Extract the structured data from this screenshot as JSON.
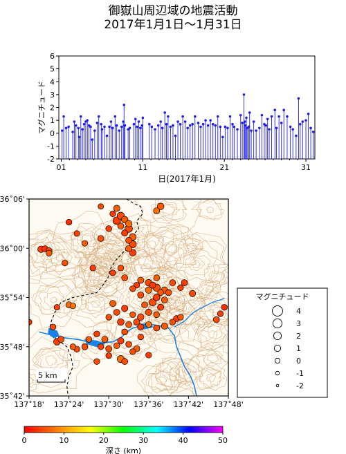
{
  "title": {
    "line1": "御嶽山周辺域の地震活動",
    "line2": "2017年1月1日～1月31日"
  },
  "chart_data": [
    {
      "type": "stem",
      "ylabel": "マグニチュード",
      "xlabel": "日(2017年1月)",
      "x_ticks": [
        "01",
        "11",
        "21",
        "31"
      ],
      "x_tick_days": [
        1,
        11,
        21,
        31
      ],
      "y_ticks": [
        "6",
        "5",
        "4",
        "3",
        "2",
        "1",
        "0",
        "-1",
        "-2"
      ],
      "y_tick_values": [
        6,
        5,
        4,
        3,
        2,
        1,
        0,
        -1,
        -2
      ],
      "ylim": [
        -2,
        6
      ],
      "xlim_days": [
        0.7,
        32.1
      ],
      "color": "#1f1fe6",
      "points": [
        [
          1.1,
          0.2
        ],
        [
          1.3,
          1.3
        ],
        [
          1.6,
          0.4
        ],
        [
          1.9,
          0.5
        ],
        [
          2.4,
          0.1
        ],
        [
          2.6,
          0.9
        ],
        [
          2.8,
          0.6
        ],
        [
          3.1,
          0.4
        ],
        [
          3.2,
          -0.3
        ],
        [
          3.4,
          1.3
        ],
        [
          3.6,
          0.3
        ],
        [
          3.8,
          0.7
        ],
        [
          4.0,
          0.9
        ],
        [
          4.2,
          1.0
        ],
        [
          4.4,
          0.6
        ],
        [
          4.6,
          0.5
        ],
        [
          4.8,
          -0.5
        ],
        [
          5.1,
          0.2
        ],
        [
          5.4,
          0.8
        ],
        [
          5.6,
          1.3
        ],
        [
          5.9,
          0.7
        ],
        [
          6.0,
          0.3
        ],
        [
          6.3,
          0.5
        ],
        [
          6.6,
          -0.2
        ],
        [
          6.9,
          0.5
        ],
        [
          7.1,
          0.9
        ],
        [
          7.3,
          0.4
        ],
        [
          7.6,
          1.3
        ],
        [
          7.8,
          0.6
        ],
        [
          8.1,
          0.2
        ],
        [
          8.4,
          0.5
        ],
        [
          8.6,
          0.9
        ],
        [
          8.7,
          2.2
        ],
        [
          8.8,
          0.6
        ],
        [
          9.2,
          0.3
        ],
        [
          9.4,
          0.4
        ],
        [
          9.9,
          0.7
        ],
        [
          10.1,
          1.1
        ],
        [
          10.3,
          0.5
        ],
        [
          10.5,
          0.9
        ],
        [
          10.7,
          0.4
        ],
        [
          10.9,
          0.6
        ],
        [
          11.0,
          1.2
        ],
        [
          11.8,
          0.7
        ],
        [
          12.1,
          0.5
        ],
        [
          12.5,
          0.3
        ],
        [
          12.9,
          0.6
        ],
        [
          13.2,
          0.9
        ],
        [
          13.4,
          0.4
        ],
        [
          13.7,
          1.6
        ],
        [
          13.9,
          0.7
        ],
        [
          14.1,
          1.3
        ],
        [
          14.4,
          0.5
        ],
        [
          14.7,
          0.6
        ],
        [
          15.0,
          -0.2
        ],
        [
          15.3,
          0.9
        ],
        [
          15.6,
          0.7
        ],
        [
          15.9,
          1.3
        ],
        [
          16.2,
          0.9
        ],
        [
          16.5,
          0.4
        ],
        [
          16.8,
          0.6
        ],
        [
          17.1,
          0.7
        ],
        [
          17.4,
          1.3
        ],
        [
          17.8,
          0.8
        ],
        [
          18.1,
          0.5
        ],
        [
          18.4,
          0.7
        ],
        [
          18.7,
          1.0
        ],
        [
          19.0,
          0.6
        ],
        [
          19.3,
          1.0
        ],
        [
          19.6,
          0.7
        ],
        [
          19.9,
          0.6
        ],
        [
          20.2,
          1.3
        ],
        [
          20.5,
          0.5
        ],
        [
          20.8,
          -0.3
        ],
        [
          21.1,
          0.5
        ],
        [
          21.4,
          0.4
        ],
        [
          21.7,
          1.3
        ],
        [
          22.0,
          0.7
        ],
        [
          22.2,
          0.5
        ],
        [
          22.6,
          0.3
        ],
        [
          23.0,
          1.4
        ],
        [
          23.2,
          0.8
        ],
        [
          23.4,
          3.0
        ],
        [
          23.5,
          0.9
        ],
        [
          23.6,
          0.6
        ],
        [
          23.7,
          1.2
        ],
        [
          23.8,
          0.4
        ],
        [
          24.0,
          0.5
        ],
        [
          24.1,
          1.6
        ],
        [
          24.3,
          0.2
        ],
        [
          24.6,
          0.9
        ],
        [
          24.9,
          0.2
        ],
        [
          25.3,
          0.4
        ],
        [
          25.6,
          1.4
        ],
        [
          25.9,
          0.7
        ],
        [
          26.1,
          0.6
        ],
        [
          26.3,
          1.1
        ],
        [
          26.5,
          0.3
        ],
        [
          26.8,
          1.3
        ],
        [
          27.2,
          1.8
        ],
        [
          27.4,
          0.4
        ],
        [
          27.7,
          1.3
        ],
        [
          28.0,
          0.8
        ],
        [
          28.3,
          1.8
        ],
        [
          28.7,
          1.3
        ],
        [
          29.1,
          0.5
        ],
        [
          29.4,
          0.3
        ],
        [
          29.8,
          -0.2
        ],
        [
          30.1,
          2.7
        ],
        [
          30.3,
          0.7
        ],
        [
          30.6,
          0.9
        ],
        [
          31.0,
          1.0
        ],
        [
          31.3,
          1.5
        ],
        [
          31.6,
          0.4
        ],
        [
          31.9,
          0.1
        ]
      ]
    },
    {
      "type": "map_scatter",
      "x_ticks": [
        "137˚18'",
        "137˚24'",
        "137˚30'",
        "137˚36'",
        "137˚42'",
        "137˚48'"
      ],
      "x_tick_values": [
        137.3,
        137.4,
        137.5,
        137.6,
        137.7,
        137.8
      ],
      "y_ticks": [
        "36˚06'",
        "36˚00'",
        "35˚54'",
        "35˚48'",
        "35˚42'"
      ],
      "y_tick_values": [
        36.1,
        36.0,
        35.9,
        35.8,
        35.7
      ],
      "xlim": [
        137.3,
        137.8
      ],
      "ylim": [
        35.7,
        36.1
      ],
      "scale_label": "5 km",
      "lake": {
        "label": "",
        "color": "#1a82e6"
      },
      "events": [
        [
          137.63,
          36.085,
          1.2,
          6
        ],
        [
          137.62,
          36.076,
          0.9,
          7
        ],
        [
          137.48,
          36.085,
          0.3,
          5
        ],
        [
          137.52,
          36.081,
          1.0,
          6
        ],
        [
          137.51,
          36.07,
          0.6,
          4
        ],
        [
          137.53,
          36.066,
          1.6,
          5
        ],
        [
          137.54,
          36.058,
          1.2,
          6
        ],
        [
          137.52,
          36.056,
          2.0,
          4
        ],
        [
          137.55,
          36.05,
          1.1,
          7
        ],
        [
          137.53,
          36.045,
          0.8,
          6
        ],
        [
          137.55,
          36.04,
          1.8,
          5
        ],
        [
          137.54,
          36.031,
          0.9,
          4
        ],
        [
          137.56,
          36.023,
          1.3,
          6
        ],
        [
          137.55,
          36.016,
          0.7,
          5
        ],
        [
          137.56,
          36.008,
          1.5,
          5
        ],
        [
          137.55,
          35.999,
          0.9,
          6
        ],
        [
          137.56,
          35.991,
          1.2,
          4
        ],
        [
          137.4,
          36.053,
          0.6,
          3
        ],
        [
          137.42,
          36.03,
          0.5,
          4
        ],
        [
          137.48,
          36.02,
          0.8,
          5
        ],
        [
          137.5,
          36.04,
          0.7,
          4
        ],
        [
          137.44,
          36.01,
          0.5,
          6
        ],
        [
          137.33,
          35.998,
          1.1,
          4
        ],
        [
          137.34,
          35.999,
          0.9,
          3
        ],
        [
          137.35,
          35.995,
          0.8,
          5
        ],
        [
          137.35,
          35.99,
          0.7,
          6
        ],
        [
          137.39,
          35.97,
          0.6,
          5
        ],
        [
          137.46,
          35.96,
          0.6,
          4
        ],
        [
          137.53,
          35.96,
          0.6,
          5
        ],
        [
          137.51,
          35.95,
          0.6,
          4
        ],
        [
          137.54,
          35.94,
          0.8,
          5
        ],
        [
          137.58,
          35.935,
          0.9,
          6
        ],
        [
          137.6,
          35.93,
          1.3,
          5
        ],
        [
          137.61,
          35.925,
          0.9,
          4
        ],
        [
          137.62,
          35.92,
          1.7,
          5
        ],
        [
          137.63,
          35.91,
          0.7,
          6
        ],
        [
          137.6,
          35.915,
          1.1,
          7
        ],
        [
          137.58,
          35.905,
          0.9,
          5
        ],
        [
          137.62,
          35.9,
          1.2,
          4
        ],
        [
          137.64,
          35.895,
          0.8,
          6
        ],
        [
          137.61,
          35.89,
          1.4,
          5
        ],
        [
          137.59,
          35.885,
          0.7,
          6
        ],
        [
          137.6,
          35.87,
          1.0,
          5
        ],
        [
          137.63,
          35.88,
          0.9,
          4
        ],
        [
          137.62,
          35.865,
          0.7,
          6
        ],
        [
          137.58,
          35.86,
          1.1,
          5
        ],
        [
          137.56,
          35.865,
          0.6,
          6
        ],
        [
          137.54,
          35.878,
          1.0,
          4
        ],
        [
          137.52,
          35.87,
          0.8,
          5
        ],
        [
          137.51,
          35.888,
          0.9,
          6
        ],
        [
          137.5,
          35.86,
          0.6,
          5
        ],
        [
          137.53,
          35.85,
          1.2,
          4
        ],
        [
          137.55,
          35.845,
          0.7,
          6
        ],
        [
          137.57,
          35.85,
          0.9,
          5
        ],
        [
          137.58,
          35.84,
          1.0,
          4
        ],
        [
          137.6,
          35.845,
          0.6,
          7
        ],
        [
          137.62,
          35.838,
          0.8,
          5
        ],
        [
          137.64,
          35.842,
          1.0,
          6
        ],
        [
          137.66,
          35.85,
          0.6,
          5
        ],
        [
          137.67,
          35.857,
          0.8,
          4
        ],
        [
          137.68,
          35.86,
          0.6,
          6
        ],
        [
          137.71,
          35.908,
          0.9,
          5
        ],
        [
          137.68,
          35.92,
          0.6,
          4
        ],
        [
          137.65,
          35.91,
          0.7,
          5
        ],
        [
          137.64,
          35.915,
          1.0,
          6
        ],
        [
          137.66,
          35.93,
          0.8,
          5
        ],
        [
          137.62,
          35.94,
          0.7,
          6
        ],
        [
          137.57,
          35.925,
          0.6,
          4
        ],
        [
          137.56,
          35.918,
          0.6,
          5
        ],
        [
          137.69,
          35.93,
          0.9,
          4
        ],
        [
          137.78,
          35.867,
          0.6,
          4
        ],
        [
          137.77,
          35.855,
          0.8,
          5
        ],
        [
          137.79,
          35.88,
          0.6,
          3
        ],
        [
          137.4,
          35.885,
          0.9,
          7
        ],
        [
          137.41,
          35.883,
          0.6,
          8
        ],
        [
          137.37,
          35.88,
          0.5,
          4
        ],
        [
          137.36,
          35.84,
          0.6,
          5
        ],
        [
          137.3,
          35.85,
          0.5,
          4
        ],
        [
          137.37,
          35.81,
          1.2,
          4
        ],
        [
          137.38,
          35.815,
          0.8,
          5
        ],
        [
          137.41,
          35.8,
          0.6,
          6
        ],
        [
          137.42,
          35.795,
          0.7,
          5
        ],
        [
          137.45,
          35.815,
          0.6,
          6
        ],
        [
          137.44,
          35.8,
          0.8,
          5
        ],
        [
          137.48,
          35.8,
          0.6,
          4
        ],
        [
          137.5,
          35.796,
          0.9,
          5
        ],
        [
          137.52,
          35.802,
          0.7,
          6
        ],
        [
          137.53,
          35.812,
          1.0,
          4
        ],
        [
          137.55,
          35.805,
          0.7,
          5
        ],
        [
          137.57,
          35.796,
          0.9,
          6
        ],
        [
          137.56,
          35.79,
          0.6,
          5
        ],
        [
          137.53,
          35.775,
          1.5,
          7
        ],
        [
          137.54,
          35.77,
          0.8,
          5
        ],
        [
          137.5,
          35.782,
          0.6,
          4
        ],
        [
          137.47,
          35.77,
          0.6,
          5
        ],
        [
          137.6,
          35.783,
          0.6,
          4
        ],
        [
          137.49,
          35.815,
          0.9,
          6
        ],
        [
          137.54,
          35.83,
          0.7,
          5
        ],
        [
          137.47,
          35.826,
          0.6,
          4
        ],
        [
          137.58,
          35.82,
          0.6,
          5
        ]
      ]
    }
  ],
  "legend": {
    "title": "マグニチュード",
    "items": [
      {
        "label": "4",
        "mag": 4
      },
      {
        "label": "3",
        "mag": 3
      },
      {
        "label": "2",
        "mag": 2
      },
      {
        "label": "1",
        "mag": 1
      },
      {
        "label": "0",
        "mag": 0
      },
      {
        "label": "-1",
        "mag": -1
      },
      {
        "label": "-2",
        "mag": -2
      }
    ]
  },
  "colorbar": {
    "label": "深さ (km)",
    "ticks": [
      "0",
      "10",
      "20",
      "30",
      "40",
      "50"
    ],
    "tick_values": [
      0,
      10,
      20,
      30,
      40,
      50
    ],
    "range": [
      0,
      50
    ],
    "colors": [
      "#ff0000",
      "#ff8000",
      "#ffff00",
      "#00ff00",
      "#00ffff",
      "#0000ff",
      "#ff00ff"
    ]
  }
}
